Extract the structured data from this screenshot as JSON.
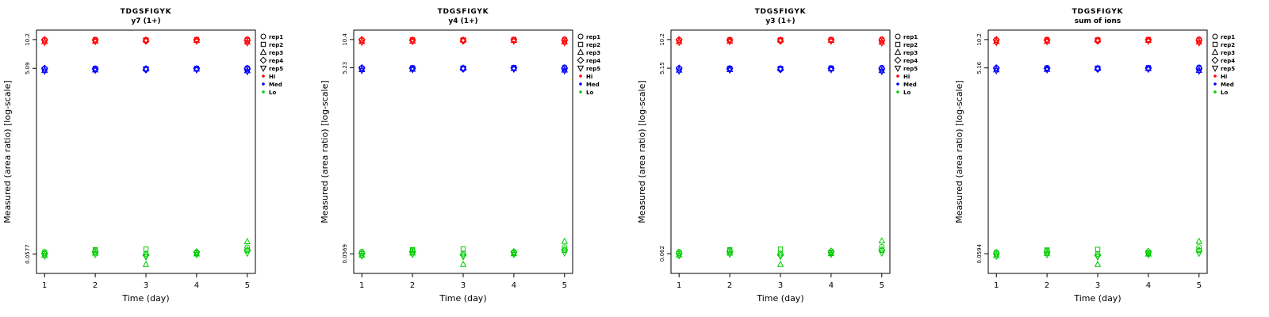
{
  "figure": {
    "xlabel": "Time (day)",
    "ylabel": "Measured (area ratio) [log-scale]",
    "x_ticks": [
      1,
      2,
      3,
      4,
      5
    ],
    "legend": {
      "reps": [
        "rep1",
        "rep2",
        "rep3",
        "rep4",
        "rep5"
      ],
      "rep_markers": [
        "circle",
        "square",
        "triangle-up",
        "diamond",
        "triangle-down"
      ],
      "groups": [
        "Hi",
        "Med",
        "Lo"
      ],
      "group_colors": [
        "#FF0000",
        "#0000FF",
        "#00CC00"
      ]
    },
    "colors": {
      "hi": "#FF0000",
      "med": "#0000FF",
      "lo": "#00CC00",
      "axis": "#000000"
    }
  },
  "chart_data": [
    {
      "type": "scatter",
      "title": "TDGSFIGYK",
      "subtitle": "y7 (1+)",
      "xlabel": "Time (day)",
      "ylabel": "Measured (area ratio) [log-scale]",
      "y_scale": "log",
      "x": [
        1,
        2,
        3,
        4,
        5
      ],
      "y_tick_labels": [
        "10.2",
        "5.09",
        "0.0577"
      ],
      "y_tick_values": [
        10.2,
        5.09,
        0.0577
      ],
      "series": [
        {
          "name": "Hi",
          "color": "#FF0000",
          "reps": [
            {
              "name": "rep1",
              "marker": "circle",
              "values": [
                10.1,
                10.2,
                10.0,
                10.1,
                10.3
              ]
            },
            {
              "name": "rep2",
              "marker": "square",
              "values": [
                10.0,
                10.1,
                10.1,
                10.2,
                9.9
              ]
            },
            {
              "name": "rep3",
              "marker": "triangle-up",
              "values": [
                9.7,
                9.8,
                10.1,
                10.0,
                9.6
              ]
            },
            {
              "name": "rep4",
              "marker": "diamond",
              "values": [
                10.2,
                10.0,
                9.8,
                10.1,
                10.1
              ]
            },
            {
              "name": "rep5",
              "marker": "triangle-down",
              "values": [
                9.5,
                9.7,
                9.9,
                9.8,
                9.4
              ]
            }
          ]
        },
        {
          "name": "Med",
          "color": "#0000FF",
          "reps": [
            {
              "name": "rep1",
              "marker": "circle",
              "values": [
                5.05,
                5.1,
                5.0,
                5.05,
                5.15
              ]
            },
            {
              "name": "rep2",
              "marker": "square",
              "values": [
                5.0,
                5.05,
                5.05,
                5.1,
                4.95
              ]
            },
            {
              "name": "rep3",
              "marker": "triangle-up",
              "values": [
                4.85,
                4.9,
                5.05,
                5.0,
                4.8
              ]
            },
            {
              "name": "rep4",
              "marker": "diamond",
              "values": [
                5.1,
                5.0,
                4.9,
                5.05,
                5.05
              ]
            },
            {
              "name": "rep5",
              "marker": "triangle-down",
              "values": [
                4.75,
                4.85,
                4.95,
                4.9,
                4.7
              ]
            }
          ]
        },
        {
          "name": "Lo",
          "color": "#00CC00",
          "reps": [
            {
              "name": "rep1",
              "marker": "circle",
              "values": [
                0.061,
                0.063,
                0.058,
                0.06,
                0.068
              ]
            },
            {
              "name": "rep2",
              "marker": "square",
              "values": [
                0.058,
                0.064,
                0.065,
                0.059,
                0.063
              ]
            },
            {
              "name": "rep3",
              "marker": "triangle-up",
              "values": [
                0.056,
                0.059,
                0.045,
                0.058,
                0.078
              ]
            },
            {
              "name": "rep4",
              "marker": "diamond",
              "values": [
                0.059,
                0.061,
                0.056,
                0.061,
                0.064
              ]
            },
            {
              "name": "rep5",
              "marker": "triangle-down",
              "values": [
                0.055,
                0.057,
                0.054,
                0.057,
                0.059
              ]
            }
          ]
        }
      ]
    },
    {
      "type": "scatter",
      "title": "TDGSFIGYK",
      "subtitle": "y4 (1+)",
      "xlabel": "Time (day)",
      "ylabel": "Measured (area ratio) [log-scale]",
      "y_scale": "log",
      "x": [
        1,
        2,
        3,
        4,
        5
      ],
      "y_tick_labels": [
        "10.4",
        "5.23",
        "0.0569"
      ],
      "y_tick_values": [
        10.4,
        5.23,
        0.0569
      ],
      "series": [
        {
          "name": "Hi",
          "color": "#FF0000",
          "reps": [
            {
              "name": "rep1",
              "marker": "circle",
              "values": [
                10.3,
                10.4,
                10.2,
                10.3,
                10.5
              ]
            },
            {
              "name": "rep2",
              "marker": "square",
              "values": [
                10.2,
                10.3,
                10.3,
                10.4,
                10.1
              ]
            },
            {
              "name": "rep3",
              "marker": "triangle-up",
              "values": [
                9.9,
                10.0,
                10.3,
                10.2,
                9.8
              ]
            },
            {
              "name": "rep4",
              "marker": "diamond",
              "values": [
                10.4,
                10.2,
                10.0,
                10.3,
                10.3
              ]
            },
            {
              "name": "rep5",
              "marker": "triangle-down",
              "values": [
                9.7,
                9.9,
                10.1,
                10.0,
                9.6
              ]
            }
          ]
        },
        {
          "name": "Med",
          "color": "#0000FF",
          "reps": [
            {
              "name": "rep1",
              "marker": "circle",
              "values": [
                5.2,
                5.25,
                5.15,
                5.2,
                5.3
              ]
            },
            {
              "name": "rep2",
              "marker": "square",
              "values": [
                5.15,
                5.2,
                5.2,
                5.25,
                5.1
              ]
            },
            {
              "name": "rep3",
              "marker": "triangle-up",
              "values": [
                5.0,
                5.05,
                5.2,
                5.15,
                4.95
              ]
            },
            {
              "name": "rep4",
              "marker": "diamond",
              "values": [
                5.25,
                5.15,
                5.05,
                5.2,
                5.2
              ]
            },
            {
              "name": "rep5",
              "marker": "triangle-down",
              "values": [
                4.9,
                5.0,
                5.1,
                5.05,
                4.85
              ]
            }
          ]
        },
        {
          "name": "Lo",
          "color": "#00CC00",
          "reps": [
            {
              "name": "rep1",
              "marker": "circle",
              "values": [
                0.06,
                0.062,
                0.057,
                0.059,
                0.067
              ]
            },
            {
              "name": "rep2",
              "marker": "square",
              "values": [
                0.057,
                0.063,
                0.064,
                0.058,
                0.062
              ]
            },
            {
              "name": "rep3",
              "marker": "triangle-up",
              "values": [
                0.055,
                0.058,
                0.044,
                0.057,
                0.077
              ]
            },
            {
              "name": "rep4",
              "marker": "diamond",
              "values": [
                0.058,
                0.06,
                0.055,
                0.06,
                0.063
              ]
            },
            {
              "name": "rep5",
              "marker": "triangle-down",
              "values": [
                0.054,
                0.056,
                0.053,
                0.056,
                0.058
              ]
            }
          ]
        }
      ]
    },
    {
      "type": "scatter",
      "title": "TDGSFIGYK",
      "subtitle": "y3 (1+)",
      "xlabel": "Time (day)",
      "ylabel": "Measured (area ratio) [log-scale]",
      "y_scale": "log",
      "x": [
        1,
        2,
        3,
        4,
        5
      ],
      "y_tick_labels": [
        "10.2",
        "5.15",
        "0.062"
      ],
      "y_tick_values": [
        10.2,
        5.15,
        0.062
      ],
      "series": [
        {
          "name": "Hi",
          "color": "#FF0000",
          "reps": [
            {
              "name": "rep1",
              "marker": "circle",
              "values": [
                10.1,
                10.2,
                10.0,
                10.1,
                10.3
              ]
            },
            {
              "name": "rep2",
              "marker": "square",
              "values": [
                10.0,
                10.1,
                10.1,
                10.2,
                9.9
              ]
            },
            {
              "name": "rep3",
              "marker": "triangle-up",
              "values": [
                9.7,
                9.8,
                10.1,
                10.0,
                9.6
              ]
            },
            {
              "name": "rep4",
              "marker": "diamond",
              "values": [
                10.2,
                10.0,
                9.8,
                10.1,
                10.1
              ]
            },
            {
              "name": "rep5",
              "marker": "triangle-down",
              "values": [
                9.5,
                9.7,
                9.9,
                9.8,
                9.4
              ]
            }
          ]
        },
        {
          "name": "Med",
          "color": "#0000FF",
          "reps": [
            {
              "name": "rep1",
              "marker": "circle",
              "values": [
                5.12,
                5.17,
                5.07,
                5.12,
                5.22
              ]
            },
            {
              "name": "rep2",
              "marker": "square",
              "values": [
                5.07,
                5.12,
                5.12,
                5.17,
                5.02
              ]
            },
            {
              "name": "rep3",
              "marker": "triangle-up",
              "values": [
                4.92,
                4.97,
                5.12,
                5.07,
                4.86
              ]
            },
            {
              "name": "rep4",
              "marker": "diamond",
              "values": [
                5.17,
                5.07,
                4.97,
                5.12,
                5.12
              ]
            },
            {
              "name": "rep5",
              "marker": "triangle-down",
              "values": [
                4.81,
                4.92,
                5.02,
                4.97,
                4.76
              ]
            }
          ]
        },
        {
          "name": "Lo",
          "color": "#00CC00",
          "reps": [
            {
              "name": "rep1",
              "marker": "circle",
              "values": [
                0.065,
                0.067,
                0.062,
                0.064,
                0.073
              ]
            },
            {
              "name": "rep2",
              "marker": "square",
              "values": [
                0.062,
                0.068,
                0.069,
                0.063,
                0.067
              ]
            },
            {
              "name": "rep3",
              "marker": "triangle-up",
              "values": [
                0.06,
                0.063,
                0.048,
                0.062,
                0.084
              ]
            },
            {
              "name": "rep4",
              "marker": "diamond",
              "values": [
                0.063,
                0.065,
                0.06,
                0.066,
                0.068
              ]
            },
            {
              "name": "rep5",
              "marker": "triangle-down",
              "values": [
                0.059,
                0.061,
                0.058,
                0.061,
                0.063
              ]
            }
          ]
        }
      ]
    },
    {
      "type": "scatter",
      "title": "TDGSFIGYK",
      "subtitle": "sum of ions",
      "xlabel": "Time (day)",
      "ylabel": "Measured (area ratio) [log-scale]",
      "y_scale": "log",
      "x": [
        1,
        2,
        3,
        4,
        5
      ],
      "y_tick_labels": [
        "10.2",
        "5.16",
        "0.0594"
      ],
      "y_tick_values": [
        10.2,
        5.16,
        0.0594
      ],
      "series": [
        {
          "name": "Hi",
          "color": "#FF0000",
          "reps": [
            {
              "name": "rep1",
              "marker": "circle",
              "values": [
                10.1,
                10.2,
                10.0,
                10.1,
                10.3
              ]
            },
            {
              "name": "rep2",
              "marker": "square",
              "values": [
                10.0,
                10.1,
                10.1,
                10.2,
                9.9
              ]
            },
            {
              "name": "rep3",
              "marker": "triangle-up",
              "values": [
                9.7,
                9.8,
                10.1,
                10.0,
                9.6
              ]
            },
            {
              "name": "rep4",
              "marker": "diamond",
              "values": [
                10.2,
                10.0,
                9.8,
                10.1,
                10.1
              ]
            },
            {
              "name": "rep5",
              "marker": "triangle-down",
              "values": [
                9.5,
                9.7,
                9.9,
                9.8,
                9.4
              ]
            }
          ]
        },
        {
          "name": "Med",
          "color": "#0000FF",
          "reps": [
            {
              "name": "rep1",
              "marker": "circle",
              "values": [
                5.13,
                5.18,
                5.08,
                5.13,
                5.23
              ]
            },
            {
              "name": "rep2",
              "marker": "square",
              "values": [
                5.08,
                5.13,
                5.13,
                5.18,
                5.03
              ]
            },
            {
              "name": "rep3",
              "marker": "triangle-up",
              "values": [
                4.92,
                4.98,
                5.13,
                5.08,
                4.87
              ]
            },
            {
              "name": "rep4",
              "marker": "diamond",
              "values": [
                5.18,
                5.08,
                4.98,
                5.13,
                5.13
              ]
            },
            {
              "name": "rep5",
              "marker": "triangle-down",
              "values": [
                4.82,
                4.92,
                5.03,
                4.98,
                4.77
              ]
            }
          ]
        },
        {
          "name": "Lo",
          "color": "#00CC00",
          "reps": [
            {
              "name": "rep1",
              "marker": "circle",
              "values": [
                0.062,
                0.064,
                0.059,
                0.061,
                0.07
              ]
            },
            {
              "name": "rep2",
              "marker": "square",
              "values": [
                0.059,
                0.065,
                0.066,
                0.06,
                0.064
              ]
            },
            {
              "name": "rep3",
              "marker": "triangle-up",
              "values": [
                0.057,
                0.06,
                0.046,
                0.059,
                0.08
              ]
            },
            {
              "name": "rep4",
              "marker": "diamond",
              "values": [
                0.06,
                0.062,
                0.057,
                0.063,
                0.065
              ]
            },
            {
              "name": "rep5",
              "marker": "triangle-down",
              "values": [
                0.056,
                0.058,
                0.055,
                0.058,
                0.06
              ]
            }
          ]
        }
      ]
    }
  ]
}
